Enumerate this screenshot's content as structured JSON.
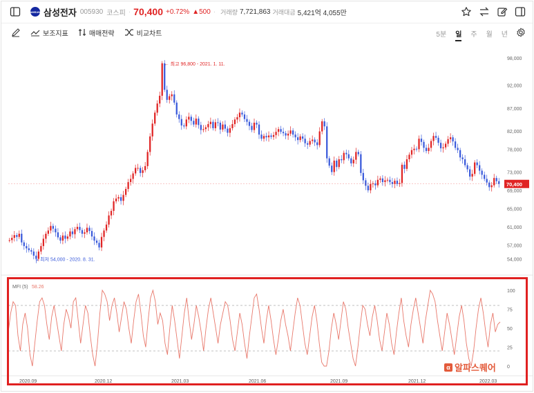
{
  "header": {
    "name": "삼성전자",
    "code": "005930",
    "market": "코스피",
    "price": "70,400",
    "change_pct": "+0.72%",
    "change_abs": "▲500",
    "volume_label": "거래량",
    "volume": "7,721,863",
    "amount_label": "거래대금",
    "amount": "5,421억 4,055만",
    "logo_text": "SAMSUNG"
  },
  "toolbar": {
    "indicator": "보조지표",
    "strategy": "매매전략",
    "compare": "비교차트",
    "periods": [
      "5분",
      "일",
      "주",
      "월",
      "년"
    ],
    "active_period": "일"
  },
  "watermark": {
    "text": "알파스퀘어",
    "badge": "α"
  },
  "colors": {
    "up": "#e02424",
    "down": "#3b5bdb",
    "mfi": "#e8776a",
    "accent_box": "#e02020"
  },
  "chart_data": [
    {
      "type": "line",
      "style": "candlestick",
      "last_price": 70400,
      "last_price_label": "70,400",
      "y_ticks": [
        54000,
        57000,
        61000,
        65000,
        69000,
        73000,
        78000,
        82000,
        87000,
        92000,
        98000
      ],
      "y_tick_labels": [
        "54,000",
        "57,000",
        "61,000",
        "65,000",
        "69,000",
        "73,000",
        "78,000",
        "82,000",
        "87,000",
        "92,000",
        "98,000"
      ],
      "ylim": [
        51500,
        101000
      ],
      "x_ticks": [
        "2020.09",
        "2020.12",
        "2021.03",
        "2021.06",
        "2021.09",
        "2021.12",
        "2022.03"
      ],
      "annotations": {
        "high": "최고 96,800 - 2021. 1. 11.",
        "low": "최저 54,000 - 2020. 8. 31."
      },
      "high_value": 96800,
      "low_value": 54000,
      "series": [
        {
          "values": [
            58100,
            58600,
            59200,
            58800,
            59500,
            57600,
            56800,
            56300,
            55900,
            55600,
            54700,
            54000,
            55600,
            56800,
            58400,
            59500,
            60200,
            61200,
            60600,
            59800,
            58700,
            58000,
            59100,
            58400,
            58900,
            60000,
            59400,
            60500,
            61000,
            60300,
            59500,
            59800,
            60800,
            60100,
            58900,
            58000,
            57500,
            56500,
            58800,
            60200,
            61500,
            63500,
            64500,
            66600,
            67200,
            67500,
            66700,
            68000,
            69300,
            70800,
            71500,
            72700,
            73900,
            73900,
            72800,
            73400,
            74300,
            77400,
            80800,
            83600,
            86000,
            88000,
            89700,
            96800,
            91000,
            88800,
            89600,
            90000,
            88200,
            85600,
            84600,
            83200,
            83000,
            84500,
            85100,
            84200,
            83400,
            84700,
            83300,
            82200,
            82400,
            82800,
            83500,
            84000,
            82600,
            83900,
            83800,
            82300,
            83400,
            82500,
            81600,
            82600,
            83500,
            84500,
            85000,
            86000,
            85600,
            84600,
            84000,
            83100,
            82200,
            83800,
            83400,
            81200,
            80300,
            80900,
            80600,
            81000,
            80700,
            81100,
            81800,
            82400,
            81800,
            81500,
            81000,
            81400,
            82100,
            81200,
            80600,
            80000,
            80800,
            80300,
            79300,
            79000,
            79800,
            80100,
            79500,
            78900,
            81900,
            84100,
            83000,
            76000,
            74400,
            73000,
            75500,
            74100,
            75800,
            75600,
            77200,
            76900,
            76000,
            74900,
            75700,
            77400,
            76900,
            72800,
            71200,
            70000,
            69000,
            70400,
            70500,
            70100,
            71300,
            71600,
            70800,
            71200,
            71300,
            70800,
            70400,
            71100,
            70400,
            70600,
            74600,
            73700,
            75800,
            76800,
            77800,
            78100,
            78000,
            80300,
            79600,
            78300,
            77600,
            78300,
            79800,
            80900,
            80500,
            79400,
            78200,
            78400,
            79200,
            80200,
            80600,
            79700,
            78300,
            77800,
            76200,
            75800,
            74500,
            73600,
            72000,
            72600,
            75100,
            74500,
            73300,
            72400,
            71500,
            70700,
            69700,
            70100,
            71700,
            71000,
            70400
          ]
        }
      ]
    },
    {
      "type": "line",
      "title": "MFI (5)",
      "value_label": "58.26",
      "current": 58.26,
      "y_ticks": [
        0,
        25,
        50,
        75,
        100
      ],
      "ylim": [
        -10,
        110
      ],
      "reference_lines": [
        20,
        80
      ],
      "series": [
        {
          "name": "MFI (5)",
          "values": [
            45,
            70,
            85,
            80,
            40,
            20,
            55,
            70,
            50,
            15,
            0,
            30,
            60,
            85,
            90,
            80,
            55,
            35,
            65,
            80,
            60,
            40,
            20,
            55,
            75,
            65,
            50,
            85,
            90,
            60,
            30,
            55,
            80,
            70,
            40,
            15,
            0,
            30,
            70,
            100,
            95,
            85,
            60,
            80,
            90,
            70,
            45,
            65,
            85,
            75,
            50,
            30,
            60,
            85,
            95,
            70,
            40,
            25,
            60,
            90,
            100,
            85,
            55,
            70,
            60,
            30,
            15,
            50,
            80,
            60,
            35,
            10,
            40,
            70,
            90,
            60,
            35,
            55,
            80,
            65,
            45,
            20,
            50,
            75,
            90,
            70,
            50,
            30,
            55,
            70,
            85,
            80,
            60,
            35,
            20,
            45,
            70,
            55,
            30,
            10,
            40,
            65,
            90,
            95,
            75,
            50,
            30,
            60,
            80,
            60,
            35,
            15,
            35,
            60,
            75,
            55,
            40,
            20,
            45,
            70,
            90,
            80,
            55,
            30,
            15,
            40,
            65,
            80,
            60,
            30,
            5,
            0,
            0,
            20,
            50,
            70,
            55,
            35,
            60,
            85,
            75,
            50,
            30,
            10,
            0,
            25,
            55,
            80,
            75,
            55,
            40,
            65,
            80,
            60,
            35,
            20,
            45,
            70,
            55,
            30,
            15,
            45,
            70,
            90,
            60,
            40,
            25,
            55,
            75,
            90,
            70,
            50,
            30,
            60,
            80,
            100,
            95,
            85,
            60,
            40,
            20,
            45,
            70,
            55,
            35,
            15,
            40,
            65,
            80,
            60,
            30,
            10,
            0,
            20,
            50,
            75,
            90,
            70,
            45,
            25,
            55,
            70,
            45,
            55,
            58.26
          ]
        }
      ]
    }
  ]
}
